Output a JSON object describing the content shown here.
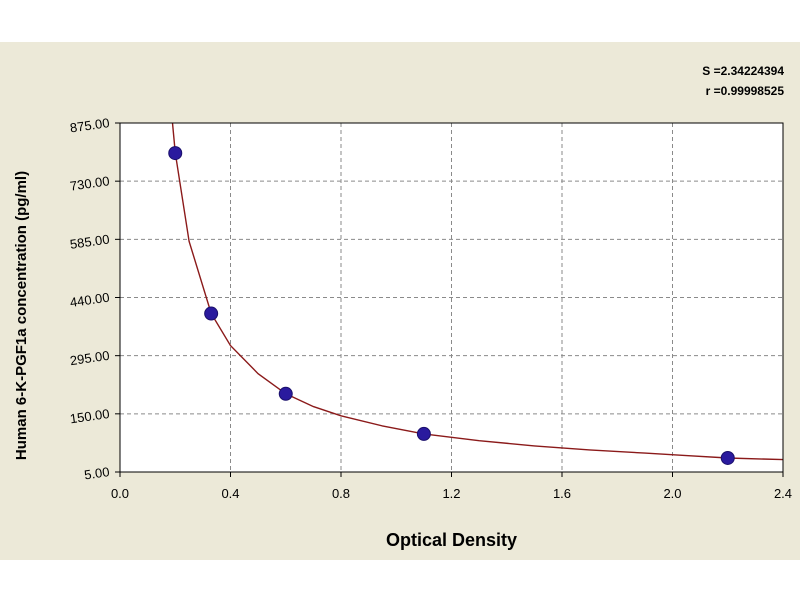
{
  "chart_data": {
    "type": "scatter",
    "title": "",
    "xlabel": "Optical Density",
    "ylabel": "Human 6-K-PGF1a concentration (pg/ml)",
    "xlim": [
      0.0,
      2.4
    ],
    "ylim": [
      5.0,
      875.0
    ],
    "x_ticks": [
      "0.0",
      "0.4",
      "0.8",
      "1.2",
      "1.6",
      "2.0",
      "2.4"
    ],
    "y_ticks": [
      "5.00",
      "150.00",
      "295.00",
      "440.00",
      "585.00",
      "730.00",
      "875.00"
    ],
    "grid": true,
    "points": [
      {
        "x": 0.2,
        "y": 800
      },
      {
        "x": 0.33,
        "y": 400
      },
      {
        "x": 0.6,
        "y": 200
      },
      {
        "x": 1.1,
        "y": 100
      },
      {
        "x": 2.2,
        "y": 40
      }
    ],
    "curve": [
      {
        "x": 0.19,
        "y": 875
      },
      {
        "x": 0.2,
        "y": 800
      },
      {
        "x": 0.25,
        "y": 580
      },
      {
        "x": 0.33,
        "y": 400
      },
      {
        "x": 0.4,
        "y": 320
      },
      {
        "x": 0.5,
        "y": 250
      },
      {
        "x": 0.6,
        "y": 200
      },
      {
        "x": 0.7,
        "y": 168
      },
      {
        "x": 0.8,
        "y": 145
      },
      {
        "x": 0.95,
        "y": 120
      },
      {
        "x": 1.1,
        "y": 100
      },
      {
        "x": 1.3,
        "y": 83
      },
      {
        "x": 1.5,
        "y": 70
      },
      {
        "x": 1.7,
        "y": 60
      },
      {
        "x": 1.9,
        "y": 52
      },
      {
        "x": 2.05,
        "y": 46
      },
      {
        "x": 2.2,
        "y": 40
      },
      {
        "x": 2.4,
        "y": 36
      }
    ],
    "stats": {
      "s_label": "S =2.34224394",
      "r_label": "r =0.99998525"
    },
    "colors": {
      "background": "#ece9d8",
      "plot_area": "#ffffff",
      "curve": "#8b1a1a",
      "point": "#2a1a9e",
      "grid": "#8a8a8a"
    }
  }
}
